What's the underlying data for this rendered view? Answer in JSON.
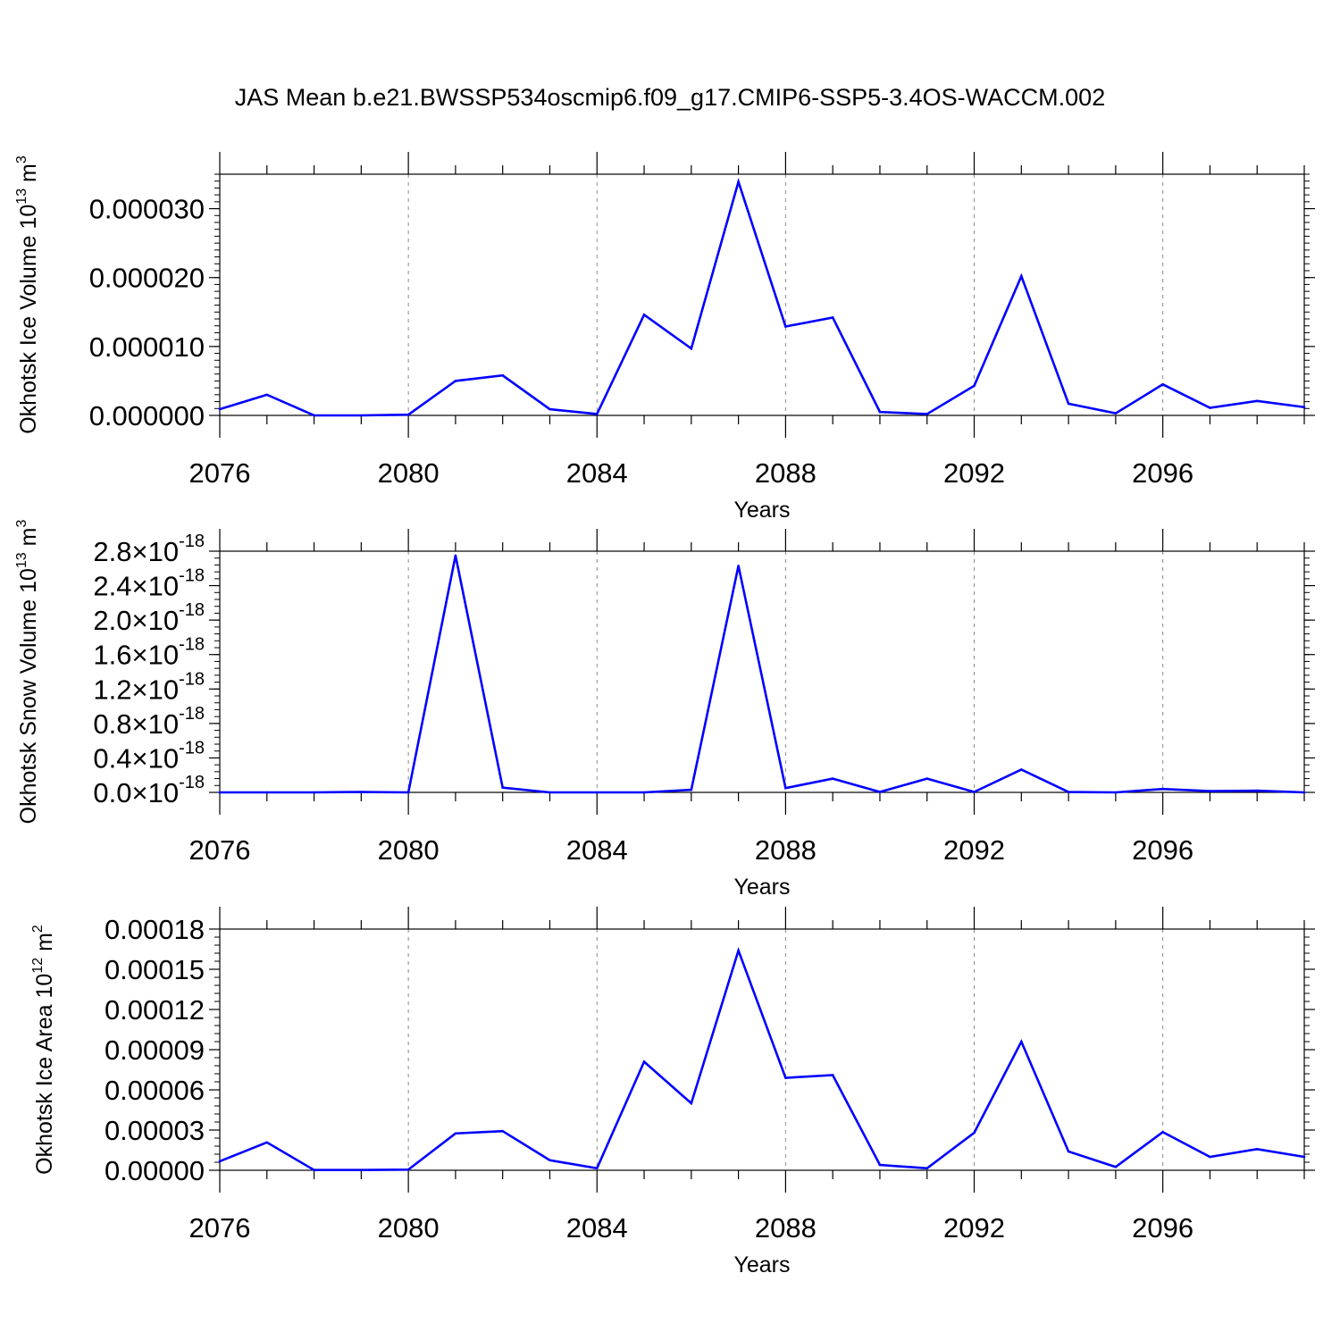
{
  "title": "JAS Mean b.e21.BWSSP534oscmip6.f09_g17.CMIP6-SSP5-3.4OS-WACCM.002",
  "chart_data": [
    {
      "type": "line",
      "ylabel": "Okhotsk Ice Volume",
      "ylabel_unit_base": "10",
      "ylabel_unit_exp": "13",
      "ylabel_unit_suffix": "m",
      "ylabel_unit_suffix_exp": "3",
      "xlabel": "Years",
      "xlim": [
        2076,
        2099
      ],
      "ylim": [
        0,
        3.5e-05
      ],
      "x_ticks": [
        2076,
        2080,
        2084,
        2088,
        2092,
        2096
      ],
      "x_tick_labels": [
        "2076",
        "2080",
        "2084",
        "2088",
        "2092",
        "2096"
      ],
      "y_ticks": [
        0,
        1e-05,
        2e-05,
        3e-05
      ],
      "y_tick_labels": [
        "0.000000",
        "0.000010",
        "0.000020",
        "0.000030"
      ],
      "y_minor_step": 1e-06,
      "color": "#0000ff",
      "x": [
        2076,
        2077,
        2078,
        2079,
        2080,
        2081,
        2082,
        2083,
        2084,
        2085,
        2086,
        2087,
        2088,
        2089,
        2090,
        2091,
        2092,
        2093,
        2094,
        2095,
        2096,
        2097,
        2098,
        2099
      ],
      "values": [
        9e-07,
        3e-06,
        0.0,
        0.0,
        1e-07,
        5e-06,
        5.8e-06,
        9e-07,
        2e-07,
        1.46e-05,
        9.7e-06,
        3.39e-05,
        1.29e-05,
        1.42e-05,
        5e-07,
        2e-07,
        4.3e-06,
        2.02e-05,
        1.7e-06,
        3e-07,
        4.5e-06,
        1.1e-06,
        2.1e-06,
        1.2e-06
      ]
    },
    {
      "type": "line",
      "ylabel": "Okhotsk Snow Volume",
      "ylabel_unit_base": "10",
      "ylabel_unit_exp": "13",
      "ylabel_unit_suffix": "m",
      "ylabel_unit_suffix_exp": "3",
      "xlabel": "Years",
      "xlim": [
        2076,
        2099
      ],
      "ylim": [
        0,
        2.8
      ],
      "x_ticks": [
        2076,
        2080,
        2084,
        2088,
        2092,
        2096
      ],
      "x_tick_labels": [
        "2076",
        "2080",
        "2084",
        "2088",
        "2092",
        "2096"
      ],
      "y_ticks": [
        0,
        0.4,
        0.8,
        1.2,
        1.6,
        2.0,
        2.4,
        2.8
      ],
      "y_tick_mantissas": [
        "0.0",
        "0.4",
        "0.8",
        "1.2",
        "1.6",
        "2.0",
        "2.4",
        "2.8"
      ],
      "y_tick_times": "×10",
      "y_tick_exponent": "-18",
      "y_minor_step": 0.08,
      "color": "#0000ff",
      "x": [
        2076,
        2077,
        2078,
        2079,
        2080,
        2081,
        2082,
        2083,
        2084,
        2085,
        2086,
        2087,
        2088,
        2089,
        2090,
        2091,
        2092,
        2093,
        2094,
        2095,
        2096,
        2097,
        2098,
        2099
      ],
      "values": [
        0.0,
        0.0,
        0.0,
        0.005,
        0.0,
        2.75,
        0.055,
        0.0,
        0.0,
        0.0,
        0.03,
        2.63,
        0.05,
        0.16,
        0.005,
        0.16,
        0.005,
        0.265,
        0.005,
        0.0,
        0.04,
        0.015,
        0.02,
        0.0
      ]
    },
    {
      "type": "line",
      "ylabel": "Okhotsk Ice Area",
      "ylabel_unit_base": "10",
      "ylabel_unit_exp": "12",
      "ylabel_unit_suffix": "m",
      "ylabel_unit_suffix_exp": "2",
      "xlabel": "Years",
      "xlim": [
        2076,
        2099
      ],
      "ylim": [
        0,
        0.00018
      ],
      "x_ticks": [
        2076,
        2080,
        2084,
        2088,
        2092,
        2096
      ],
      "x_tick_labels": [
        "2076",
        "2080",
        "2084",
        "2088",
        "2092",
        "2096"
      ],
      "y_ticks": [
        0,
        3e-05,
        6e-05,
        9e-05,
        0.00012,
        0.00015,
        0.00018
      ],
      "y_tick_labels": [
        "0.00000",
        "0.00003",
        "0.00006",
        "0.00009",
        "0.00012",
        "0.00015",
        "0.00018"
      ],
      "y_minor_step": 6e-06,
      "color": "#0000ff",
      "x": [
        2076,
        2077,
        2078,
        2079,
        2080,
        2081,
        2082,
        2083,
        2084,
        2085,
        2086,
        2087,
        2088,
        2089,
        2090,
        2091,
        2092,
        2093,
        2094,
        2095,
        2096,
        2097,
        2098,
        2099
      ],
      "values": [
        6.7e-06,
        2.08e-05,
        2e-07,
        2e-07,
        5e-07,
        2.75e-05,
        2.92e-05,
        7.5e-06,
        1.5e-06,
        8.1e-05,
        5e-05,
        0.000164,
        6.9e-05,
        7.1e-05,
        4e-06,
        1.5e-06,
        2.8e-05,
        9.6e-05,
        1.4e-05,
        2.5e-06,
        2.85e-05,
        1e-05,
        1.58e-05,
        1e-05
      ]
    }
  ]
}
